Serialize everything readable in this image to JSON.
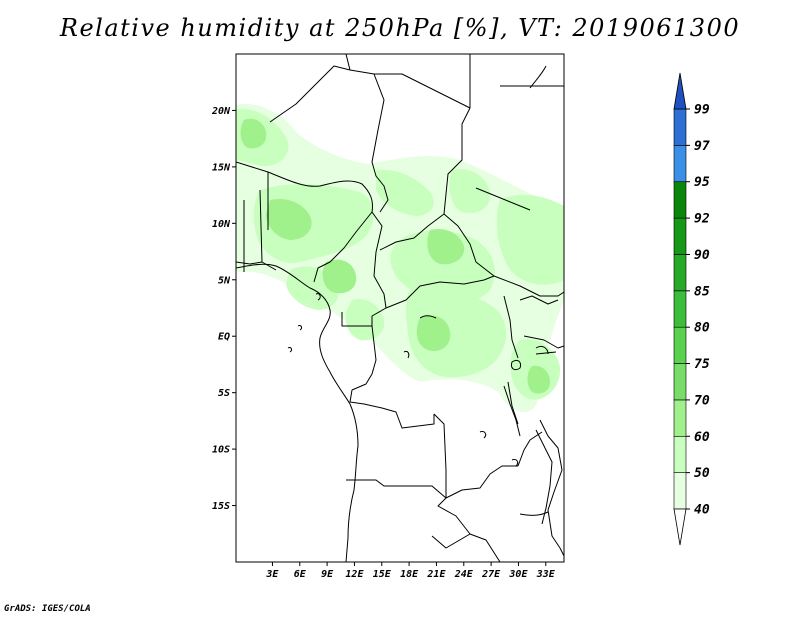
{
  "title": "Relative humidity at 250hPa [%], VT: 2019061300",
  "credit": "GrADS: IGES/COLA",
  "map": {
    "lon_range": [
      -1,
      35
    ],
    "lat_range": [
      -20,
      25
    ],
    "lat_ticks": [
      {
        "value": 20,
        "label": "20N"
      },
      {
        "value": 15,
        "label": "15N"
      },
      {
        "value": 10,
        "label": "10N"
      },
      {
        "value": 5,
        "label": "5N"
      },
      {
        "value": 0,
        "label": "EQ"
      },
      {
        "value": -5,
        "label": "5S"
      },
      {
        "value": -10,
        "label": "10S"
      },
      {
        "value": -15,
        "label": "15S"
      }
    ],
    "lon_ticks": [
      {
        "value": 3,
        "label": "3E"
      },
      {
        "value": 6,
        "label": "6E"
      },
      {
        "value": 9,
        "label": "9E"
      },
      {
        "value": 12,
        "label": "12E"
      },
      {
        "value": 15,
        "label": "15E"
      },
      {
        "value": 18,
        "label": "18E"
      },
      {
        "value": 21,
        "label": "21E"
      },
      {
        "value": 24,
        "label": "24E"
      },
      {
        "value": 27,
        "label": "27E"
      },
      {
        "value": 30,
        "label": "30E"
      },
      {
        "value": 33,
        "label": "33E"
      }
    ]
  },
  "colorbar": {
    "levels": [
      "40",
      "50",
      "60",
      "70",
      "75",
      "80",
      "85",
      "90",
      "92",
      "95",
      "97",
      "99"
    ],
    "colors": [
      "#e6ffe1",
      "#c8ffbe",
      "#a0f08c",
      "#78dc68",
      "#5ad250",
      "#3cbe3c",
      "#28aa28",
      "#189818",
      "#0a860a",
      "#3a90e6",
      "#2f6fd4",
      "#1f4fc0"
    ],
    "low_end_color": "#ffffff",
    "high_end_color": "#1f4fc0"
  }
}
